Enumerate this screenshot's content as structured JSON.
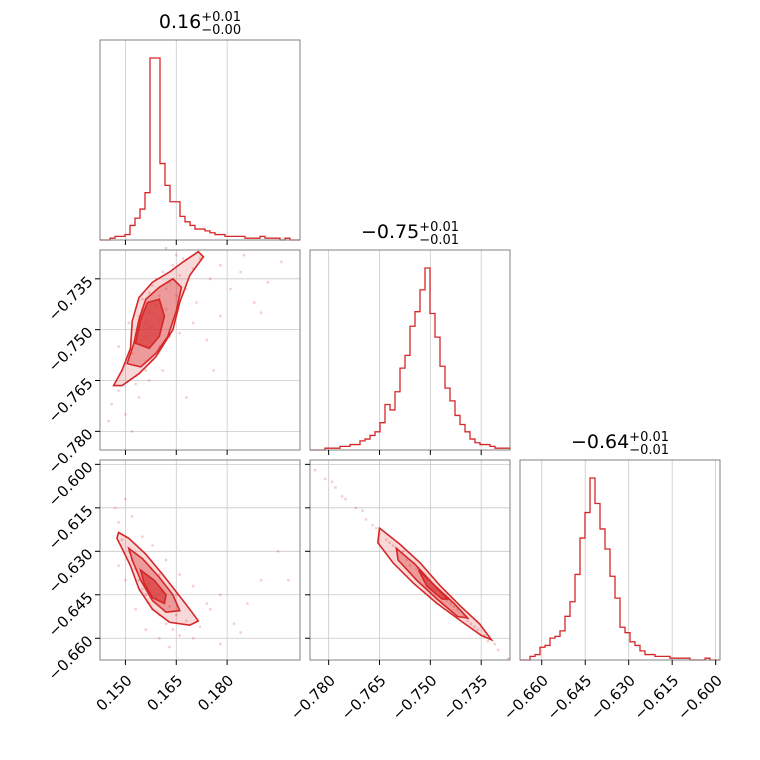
{
  "chart_data": {
    "type": "corner",
    "color": "#d62728",
    "parameters": [
      {
        "title": {
          "value": "0.16",
          "plus": "+0.01",
          "minus": "−0.00"
        },
        "range": [
          0.1425,
          0.2015
        ],
        "ticks": [
          0.15,
          0.165,
          0.18
        ],
        "tick_labels": [
          "0.150",
          "0.165",
          "0.180"
        ],
        "hist_counts": [
          0,
          0,
          1,
          2,
          2,
          3,
          8,
          12,
          17,
          26,
          100,
          100,
          42,
          30,
          21,
          21,
          13,
          10,
          8,
          6,
          6,
          5,
          4,
          3,
          3,
          2,
          2,
          2,
          2,
          1,
          1,
          1,
          2,
          1,
          1,
          1,
          0,
          1,
          0,
          0
        ]
      },
      {
        "title": {
          "value": "−0.75",
          "plus": "+0.01",
          "minus": "−0.01"
        },
        "range": [
          -0.7855,
          -0.7265
        ],
        "ticks": [
          -0.78,
          -0.765,
          -0.75,
          -0.735
        ],
        "tick_labels": [
          "−0.780",
          "−0.765",
          "−0.750",
          "−0.735"
        ],
        "hist_counts": [
          0,
          0,
          0,
          1,
          1,
          1,
          2,
          2,
          3,
          3,
          5,
          6,
          8,
          10,
          15,
          25,
          22,
          32,
          45,
          52,
          68,
          76,
          88,
          100,
          75,
          62,
          46,
          34,
          27,
          19,
          14,
          10,
          6,
          4,
          3,
          3,
          2,
          1,
          1,
          1
        ]
      },
      {
        "title": {
          "value": "−0.64",
          "plus": "+0.01",
          "minus": "−0.01"
        },
        "range": [
          -0.6675,
          -0.5985
        ],
        "ticks": [
          -0.66,
          -0.645,
          -0.63,
          -0.615,
          -0.6
        ],
        "tick_labels": [
          "−0.660",
          "−0.645",
          "−0.630",
          "−0.615",
          "−0.600"
        ],
        "hist_counts": [
          0,
          0,
          2,
          3,
          7,
          8,
          12,
          13,
          16,
          24,
          32,
          47,
          67,
          81,
          100,
          86,
          72,
          61,
          46,
          34,
          18,
          15,
          10,
          8,
          5,
          3,
          3,
          2,
          2,
          2,
          1,
          1,
          1,
          1,
          0,
          0,
          0,
          1,
          0,
          0
        ]
      }
    ],
    "pairs": [
      {
        "x_param": 0,
        "y_param": 1,
        "points": [
          [
            0.149,
            -0.762
          ],
          [
            0.151,
            -0.758
          ],
          [
            0.152,
            -0.757
          ],
          [
            0.153,
            -0.754
          ],
          [
            0.154,
            -0.75
          ],
          [
            0.154,
            -0.746
          ],
          [
            0.155,
            -0.744
          ],
          [
            0.155,
            -0.741
          ],
          [
            0.156,
            -0.748
          ],
          [
            0.156,
            -0.752
          ],
          [
            0.157,
            -0.739
          ],
          [
            0.157,
            -0.745
          ],
          [
            0.158,
            -0.737
          ],
          [
            0.158,
            -0.749
          ],
          [
            0.159,
            -0.743
          ],
          [
            0.159,
            -0.735
          ],
          [
            0.16,
            -0.74
          ],
          [
            0.16,
            -0.747
          ],
          [
            0.161,
            -0.733
          ],
          [
            0.162,
            -0.738
          ],
          [
            0.162,
            -0.744
          ],
          [
            0.163,
            -0.736
          ],
          [
            0.164,
            -0.731
          ],
          [
            0.165,
            -0.74
          ],
          [
            0.166,
            -0.734
          ],
          [
            0.167,
            -0.729
          ],
          [
            0.168,
            -0.738
          ],
          [
            0.17,
            -0.732
          ],
          [
            0.172,
            -0.729
          ],
          [
            0.175,
            -0.735
          ],
          [
            0.178,
            -0.731
          ],
          [
            0.181,
            -0.738
          ],
          [
            0.184,
            -0.733
          ],
          [
            0.188,
            -0.742
          ],
          [
            0.192,
            -0.736
          ],
          [
            0.146,
            -0.772
          ],
          [
            0.145,
            -0.777
          ],
          [
            0.148,
            -0.768
          ],
          [
            0.15,
            -0.775
          ],
          [
            0.152,
            -0.78
          ],
          [
            0.154,
            -0.77
          ],
          [
            0.156,
            -0.762
          ],
          [
            0.158,
            -0.759
          ],
          [
            0.16,
            -0.755
          ],
          [
            0.163,
            -0.752
          ],
          [
            0.166,
            -0.751
          ],
          [
            0.17,
            -0.748
          ],
          [
            0.174,
            -0.753
          ],
          [
            0.178,
            -0.746
          ],
          [
            0.185,
            -0.728
          ],
          [
            0.19,
            -0.745
          ],
          [
            0.196,
            -0.73
          ],
          [
            0.165,
            -0.728
          ],
          [
            0.162,
            -0.726
          ],
          [
            0.171,
            -0.742
          ],
          [
            0.176,
            -0.762
          ],
          [
            0.168,
            -0.77
          ],
          [
            0.151,
            -0.748
          ],
          [
            0.148,
            -0.755
          ],
          [
            0.157,
            -0.765
          ],
          [
            0.153,
            -0.766
          ],
          [
            0.161,
            -0.762
          ]
        ],
        "contours": [
          [
            [
              0.1465,
              -0.7665
            ],
            [
              0.149,
              -0.762
            ],
            [
              0.1515,
              -0.7555
            ],
            [
              0.152,
              -0.7475
            ],
            [
              0.154,
              -0.7405
            ],
            [
              0.158,
              -0.736
            ],
            [
              0.163,
              -0.733
            ],
            [
              0.167,
              -0.73
            ],
            [
              0.1715,
              -0.727
            ],
            [
              0.173,
              -0.7285
            ],
            [
              0.169,
              -0.734
            ],
            [
              0.166,
              -0.742
            ],
            [
              0.164,
              -0.75
            ],
            [
              0.159,
              -0.758
            ],
            [
              0.154,
              -0.763
            ],
            [
              0.149,
              -0.7665
            ]
          ],
          [
            [
              0.1505,
              -0.76
            ],
            [
              0.1525,
              -0.754
            ],
            [
              0.154,
              -0.747
            ],
            [
              0.156,
              -0.741
            ],
            [
              0.16,
              -0.7375
            ],
            [
              0.164,
              -0.735
            ],
            [
              0.1665,
              -0.7375
            ],
            [
              0.165,
              -0.7445
            ],
            [
              0.1625,
              -0.752
            ],
            [
              0.159,
              -0.757
            ],
            [
              0.1545,
              -0.761
            ]
          ],
          [
            [
              0.153,
              -0.754
            ],
            [
              0.1545,
              -0.747
            ],
            [
              0.1565,
              -0.742
            ],
            [
              0.16,
              -0.741
            ],
            [
              0.1615,
              -0.746
            ],
            [
              0.16,
              -0.752
            ],
            [
              0.157,
              -0.7555
            ]
          ]
        ]
      },
      {
        "x_param": 0,
        "y_param": 2,
        "points": [
          [
            0.149,
            -0.626
          ],
          [
            0.151,
            -0.63
          ],
          [
            0.152,
            -0.633
          ],
          [
            0.153,
            -0.636
          ],
          [
            0.154,
            -0.64
          ],
          [
            0.155,
            -0.643
          ],
          [
            0.156,
            -0.645
          ],
          [
            0.157,
            -0.648
          ],
          [
            0.157,
            -0.641
          ],
          [
            0.158,
            -0.65
          ],
          [
            0.159,
            -0.646
          ],
          [
            0.16,
            -0.652
          ],
          [
            0.16,
            -0.638
          ],
          [
            0.161,
            -0.644
          ],
          [
            0.162,
            -0.655
          ],
          [
            0.163,
            -0.649
          ],
          [
            0.164,
            -0.657
          ],
          [
            0.165,
            -0.652
          ],
          [
            0.166,
            -0.659
          ],
          [
            0.168,
            -0.654
          ],
          [
            0.17,
            -0.66
          ],
          [
            0.172,
            -0.656
          ],
          [
            0.175,
            -0.65
          ],
          [
            0.178,
            -0.645
          ],
          [
            0.182,
            -0.655
          ],
          [
            0.186,
            -0.648
          ],
          [
            0.19,
            -0.64
          ],
          [
            0.195,
            -0.63
          ],
          [
            0.147,
            -0.615
          ],
          [
            0.148,
            -0.62
          ],
          [
            0.15,
            -0.612
          ],
          [
            0.152,
            -0.618
          ],
          [
            0.155,
            -0.625
          ],
          [
            0.158,
            -0.628
          ],
          [
            0.162,
            -0.633
          ],
          [
            0.166,
            -0.638
          ],
          [
            0.17,
            -0.642
          ],
          [
            0.174,
            -0.648
          ],
          [
            0.178,
            -0.662
          ],
          [
            0.184,
            -0.658
          ],
          [
            0.198,
            -0.64
          ],
          [
            0.165,
            -0.645
          ],
          [
            0.16,
            -0.66
          ],
          [
            0.156,
            -0.657
          ],
          [
            0.163,
            -0.663
          ],
          [
            0.153,
            -0.65
          ],
          [
            0.15,
            -0.64
          ],
          [
            0.148,
            -0.635
          ]
        ],
        "contours": [
          [
            [
              0.148,
              -0.6235
            ],
            [
              0.151,
              -0.6255
            ],
            [
              0.156,
              -0.631
            ],
            [
              0.161,
              -0.638
            ],
            [
              0.165,
              -0.644
            ],
            [
              0.169,
              -0.65
            ],
            [
              0.1715,
              -0.654
            ],
            [
              0.169,
              -0.6555
            ],
            [
              0.163,
              -0.6545
            ],
            [
              0.158,
              -0.65
            ],
            [
              0.154,
              -0.643
            ],
            [
              0.1515,
              -0.635
            ],
            [
              0.149,
              -0.629
            ],
            [
              0.1475,
              -0.6255
            ]
          ],
          [
            [
              0.151,
              -0.629
            ],
            [
              0.155,
              -0.6325
            ],
            [
              0.16,
              -0.639
            ],
            [
              0.164,
              -0.645
            ],
            [
              0.166,
              -0.6505
            ],
            [
              0.162,
              -0.651
            ],
            [
              0.158,
              -0.647
            ],
            [
              0.1545,
              -0.64
            ],
            [
              0.152,
              -0.633
            ]
          ],
          [
            [
              0.1545,
              -0.6365
            ],
            [
              0.1585,
              -0.64
            ],
            [
              0.162,
              -0.645
            ],
            [
              0.1615,
              -0.648
            ],
            [
              0.158,
              -0.646
            ],
            [
              0.1555,
              -0.641
            ]
          ]
        ]
      },
      {
        "x_param": 1,
        "y_param": 2,
        "points": [
          [
            -0.784,
            -0.602
          ],
          [
            -0.781,
            -0.605
          ],
          [
            -0.778,
            -0.608
          ],
          [
            -0.775,
            -0.612
          ],
          [
            -0.772,
            -0.615
          ],
          [
            -0.769,
            -0.619
          ],
          [
            -0.766,
            -0.622
          ],
          [
            -0.763,
            -0.626
          ],
          [
            -0.76,
            -0.629
          ],
          [
            -0.757,
            -0.633
          ],
          [
            -0.754,
            -0.636
          ],
          [
            -0.751,
            -0.64
          ],
          [
            -0.748,
            -0.643
          ],
          [
            -0.745,
            -0.647
          ],
          [
            -0.742,
            -0.65
          ],
          [
            -0.739,
            -0.654
          ],
          [
            -0.736,
            -0.657
          ],
          [
            -0.733,
            -0.661
          ],
          [
            -0.73,
            -0.664
          ],
          [
            -0.727,
            -0.667
          ],
          [
            -0.77,
            -0.616
          ],
          [
            -0.767,
            -0.621
          ],
          [
            -0.761,
            -0.628
          ],
          [
            -0.755,
            -0.634
          ],
          [
            -0.749,
            -0.642
          ],
          [
            -0.743,
            -0.649
          ],
          [
            -0.737,
            -0.656
          ],
          [
            -0.731,
            -0.662
          ],
          [
            -0.776,
            -0.611
          ],
          [
            -0.765,
            -0.624
          ],
          [
            -0.758,
            -0.63
          ],
          [
            -0.752,
            -0.638
          ],
          [
            -0.746,
            -0.645
          ],
          [
            -0.74,
            -0.652
          ],
          [
            -0.734,
            -0.659
          ],
          [
            -0.779,
            -0.606
          ],
          [
            -0.762,
            -0.627
          ],
          [
            -0.756,
            -0.635
          ],
          [
            -0.744,
            -0.648
          ],
          [
            -0.738,
            -0.655
          ]
        ],
        "contours": [
          [
            [
              -0.765,
              -0.622
            ],
            [
              -0.759,
              -0.6275
            ],
            [
              -0.753,
              -0.634
            ],
            [
              -0.747,
              -0.642
            ],
            [
              -0.741,
              -0.649
            ],
            [
              -0.7355,
              -0.655
            ],
            [
              -0.732,
              -0.6605
            ],
            [
              -0.735,
              -0.659
            ],
            [
              -0.741,
              -0.654
            ],
            [
              -0.748,
              -0.648
            ],
            [
              -0.755,
              -0.641
            ],
            [
              -0.761,
              -0.634
            ],
            [
              -0.7655,
              -0.627
            ]
          ],
          [
            [
              -0.76,
              -0.629
            ],
            [
              -0.7545,
              -0.6345
            ],
            [
              -0.749,
              -0.6415
            ],
            [
              -0.743,
              -0.648
            ],
            [
              -0.739,
              -0.653
            ],
            [
              -0.742,
              -0.6525
            ],
            [
              -0.748,
              -0.6465
            ],
            [
              -0.754,
              -0.64
            ],
            [
              -0.7595,
              -0.633
            ]
          ],
          [
            [
              -0.7535,
              -0.6365
            ],
            [
              -0.749,
              -0.6415
            ],
            [
              -0.745,
              -0.6465
            ],
            [
              -0.7465,
              -0.6465
            ],
            [
              -0.751,
              -0.642
            ]
          ]
        ]
      }
    ]
  }
}
